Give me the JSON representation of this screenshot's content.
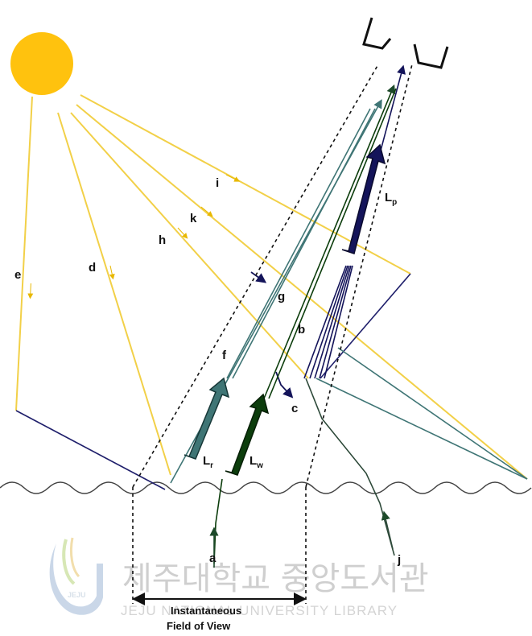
{
  "labels": {
    "a": "a",
    "b": "b",
    "c": "c",
    "d": "d",
    "e": "e",
    "f": "f",
    "g": "g",
    "h": "h",
    "i": "i",
    "j": "j",
    "k": "k",
    "Lr": {
      "main": "L",
      "sub": "r"
    },
    "Lw": {
      "main": "L",
      "sub": "w"
    },
    "Lp": {
      "main": "L",
      "sub": "p"
    }
  },
  "fov": {
    "line1": "Instantaneous",
    "line2": "Field of View"
  },
  "watermark": {
    "korean": "제주대학교 중앙도서관",
    "english": "JEJU NATIONAL UNIVERSITY LIBRARY",
    "logo_text": "JEJU"
  },
  "colors": {
    "sun": "#FFC20E",
    "solar_ray": "#F2D048",
    "surface_reflection": "#1f1f6b",
    "water_leaving": "#0c3d0c",
    "reflected": "#3f7575",
    "path": "#14145a",
    "water_surface": "#444444"
  }
}
